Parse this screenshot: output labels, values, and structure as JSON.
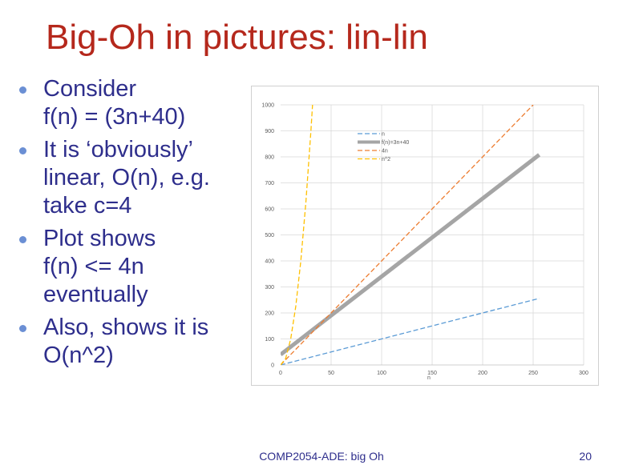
{
  "slide": {
    "title": "Big-Oh in pictures: lin-lin",
    "footer": "COMP2054-ADE: big Oh",
    "page_number": "20",
    "colors": {
      "title": "#b5281c",
      "text": "#2e2e8c",
      "bullet": "#6b8fd4"
    }
  },
  "bullets": [
    {
      "lines": [
        "Consider",
        "f(n) = (3n+40)"
      ]
    },
    {
      "lines": [
        "It is ‘obviously’",
        "linear, O(n), e.g.",
        "take c=4"
      ]
    },
    {
      "lines": [
        "Plot shows",
        "f(n) <= 4n",
        "eventually"
      ]
    },
    {
      "lines": [
        "Also, shows it is",
        "O(n^2)"
      ]
    }
  ],
  "chart_data": {
    "type": "line",
    "xlabel": "n",
    "ylabel": "",
    "xlim": [
      0,
      300
    ],
    "ylim": [
      0,
      1000
    ],
    "xticks": [
      0,
      50,
      100,
      150,
      200,
      250,
      300
    ],
    "yticks": [
      0,
      100,
      200,
      300,
      400,
      500,
      600,
      700,
      800,
      900,
      1000
    ],
    "grid": true,
    "legend_position": "upper-center",
    "series": [
      {
        "name": "n",
        "x": [
          0,
          256
        ],
        "y": [
          0,
          256
        ],
        "color": "#5b9bd5",
        "dashed": true,
        "width": 1.3
      },
      {
        "name": "f(n)=3n+40",
        "x": [
          0,
          256
        ],
        "y": [
          40,
          808
        ],
        "color": "#a5a5a5",
        "dashed": false,
        "width": 5
      },
      {
        "name": "4n",
        "x": [
          0,
          250
        ],
        "y": [
          0,
          1000
        ],
        "color": "#ed7d31",
        "dashed": true,
        "width": 1.3
      },
      {
        "name": "n^2",
        "x": [
          0,
          5,
          10,
          15,
          20,
          25,
          30,
          31.6
        ],
        "y": [
          0,
          25,
          100,
          225,
          400,
          625,
          900,
          1000
        ],
        "color": "#ffc000",
        "dashed": true,
        "width": 1.3
      }
    ]
  }
}
